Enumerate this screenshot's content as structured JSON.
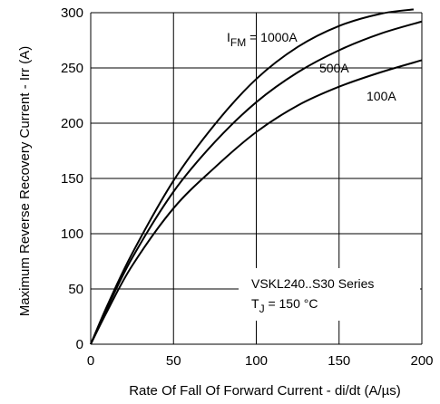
{
  "chart_data": {
    "type": "line",
    "xlabel": "Rate Of Fall Of Forward Current - di/dt (A/µs)",
    "ylabel": "Maximum Reverse Recovery Current - Irr (A)",
    "xlim": [
      0,
      200
    ],
    "ylim": [
      0,
      300
    ],
    "x_ticks": [
      "0",
      "50",
      "100",
      "150",
      "200"
    ],
    "y_ticks": [
      "0",
      "50",
      "100",
      "150",
      "200",
      "250",
      "300"
    ],
    "grid": true,
    "series": [
      {
        "name": "1000A",
        "prefix": "I",
        "subscript": "FM",
        "suffix": " = 1000A",
        "x": [
          0,
          10,
          25,
          50,
          75,
          100,
          125,
          150,
          175,
          195
        ],
        "y": [
          0,
          35,
          82,
          148,
          199,
          240,
          269,
          288,
          299,
          303
        ]
      },
      {
        "name": "500A",
        "x": [
          0,
          10,
          25,
          50,
          75,
          100,
          125,
          150,
          175,
          200
        ],
        "y": [
          0,
          33,
          78,
          138,
          183,
          219,
          246,
          266,
          281,
          292
        ]
      },
      {
        "name": "100A",
        "x": [
          0,
          10,
          25,
          50,
          75,
          100,
          125,
          150,
          175,
          200
        ],
        "y": [
          0,
          30,
          71,
          123,
          160,
          192,
          216,
          233,
          246,
          257
        ]
      }
    ],
    "annotation": {
      "line1": "VSKL240..S30 Series",
      "line2_prefix": "T",
      "line2_sub": "J",
      "line2_suffix": " = 150 °C"
    }
  }
}
